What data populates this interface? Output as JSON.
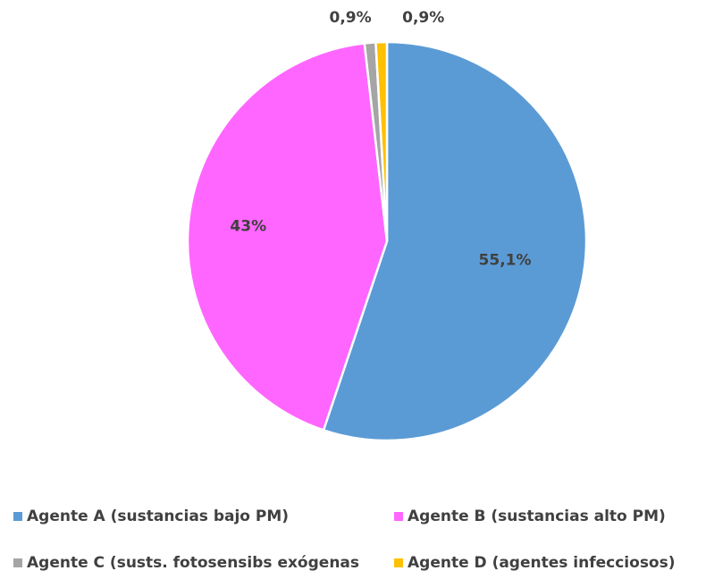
{
  "chart_data": {
    "type": "pie",
    "categories": [
      "Agente A (sustancias bajo PM)",
      "Agente B (sustancias alto PM)",
      "Agente C (susts. fotosensibs exógenas",
      "Agente D (agentes infecciosos)"
    ],
    "values": [
      55.1,
      43,
      0.9,
      0.9
    ],
    "value_labels": [
      "55,1%",
      "43%",
      "0,9%",
      "0,9%"
    ],
    "colors": [
      "#5b9bd5",
      "#ff66ff",
      "#a5a5a5",
      "#ffc000"
    ],
    "legend": "bottom"
  }
}
